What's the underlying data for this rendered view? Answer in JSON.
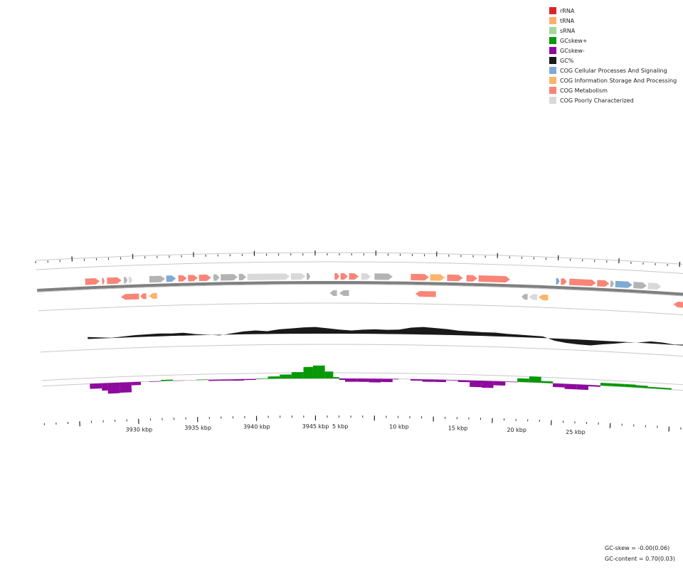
{
  "legend": [
    {
      "label": "rRNA",
      "color": "#d62728",
      "icon": "square-swatch"
    },
    {
      "label": "tRNA",
      "color": "#fdae6b",
      "icon": "square-swatch"
    },
    {
      "label": "sRNA",
      "color": "#a1d99b",
      "icon": "square-swatch"
    },
    {
      "label": "GCskew+",
      "color": "#089808",
      "icon": "square-swatch"
    },
    {
      "label": "GCskew-",
      "color": "#8e0a9e",
      "icon": "square-swatch"
    },
    {
      "label": "GC%",
      "color": "#1a1a1a",
      "icon": "square-swatch"
    },
    {
      "label": "COG Cellular Processes And Signaling",
      "color": "#7eaad4",
      "icon": "square-swatch"
    },
    {
      "label": "COG Information Storage And Processing",
      "color": "#fdb56b",
      "icon": "square-swatch"
    },
    {
      "label": "COG Metabolism",
      "color": "#f98577",
      "icon": "square-swatch"
    },
    {
      "label": "COG Poorly Characterized",
      "color": "#d9d9d9",
      "icon": "square-swatch"
    }
  ],
  "axis_labels": [
    "3930 kbp",
    "3935 kbp",
    "3940 kbp",
    "3945 kbp",
    "5 kbp",
    "10 kbp",
    "15 kbp",
    "20 kbp",
    "25 kbp"
  ],
  "stats": {
    "gc_skew": "GC-skew = -0.00(0.06)",
    "gc_content": "GC-content = 0.70(0.03)"
  },
  "colors": {
    "metabolism": "#f98577",
    "info": "#fdb56b",
    "cellular": "#7eaad4",
    "poorly": "#d9d9d9",
    "unknown": "#b3b3b3",
    "gc": "#1a1a1a",
    "skew_pos": "#089808",
    "skew_neg": "#8e0a9e",
    "backbone": "#7f7f7f",
    "ring": "#c8c8c8"
  },
  "forward_genes": [
    {
      "start": 3926.0,
      "end": 3927.2,
      "cat": "metabolism"
    },
    {
      "start": 3927.4,
      "end": 3927.6,
      "cat": "metabolism"
    },
    {
      "start": 3927.8,
      "end": 3929.0,
      "cat": "metabolism"
    },
    {
      "start": 3929.2,
      "end": 3929.5,
      "cat": "unknown"
    },
    {
      "start": 3929.6,
      "end": 3929.9,
      "cat": "poorly"
    },
    {
      "start": 3931.3,
      "end": 3932.6,
      "cat": "unknown"
    },
    {
      "start": 3932.7,
      "end": 3933.5,
      "cat": "cellular"
    },
    {
      "start": 3933.7,
      "end": 3934.4,
      "cat": "metabolism"
    },
    {
      "start": 3934.5,
      "end": 3935.3,
      "cat": "metabolism"
    },
    {
      "start": 3935.4,
      "end": 3936.4,
      "cat": "metabolism"
    },
    {
      "start": 3936.6,
      "end": 3937.1,
      "cat": "unknown"
    },
    {
      "start": 3937.2,
      "end": 3938.6,
      "cat": "unknown"
    },
    {
      "start": 3938.7,
      "end": 3939.3,
      "cat": "unknown"
    },
    {
      "start": 3939.4,
      "end": 3942.9,
      "cat": "poorly"
    },
    {
      "start": 3943.0,
      "end": 3944.2,
      "cat": "poorly"
    },
    {
      "start": 3944.3,
      "end": 3944.6,
      "cat": "unknown"
    },
    {
      "start": 3946.6,
      "end": 3947.0,
      "cat": "metabolism"
    },
    {
      "start": 3947.1,
      "end": 3947.7,
      "cat": "metabolism"
    },
    {
      "start": 3947.8,
      "end": 3948.6,
      "cat": "metabolism"
    },
    {
      "start": 3948.8,
      "end": 3949.6,
      "cat": "poorly"
    },
    {
      "start": 3949.9,
      "end": 3951.4,
      "cat": "unknown"
    },
    {
      "start": 3952.9,
      "end": 3954.4,
      "cat": "metabolism"
    },
    {
      "start": 3954.5,
      "end": 3955.7,
      "cat": "info"
    },
    {
      "start": 3955.9,
      "end": 3957.2,
      "cat": "metabolism"
    },
    {
      "start": 3957.5,
      "end": 3958.4,
      "cat": "metabolism"
    },
    {
      "start": 3958.5,
      "end": 3961.1,
      "cat": "metabolism"
    },
    {
      "start": 3964.9,
      "end": 3965.2,
      "cat": "cellular"
    },
    {
      "start": 3965.3,
      "end": 3965.8,
      "cat": "metabolism"
    },
    {
      "start": 3966.0,
      "end": 3968.2,
      "cat": "metabolism"
    },
    {
      "start": 3968.3,
      "end": 3969.3,
      "cat": "metabolism"
    },
    {
      "start": 3969.4,
      "end": 3969.7,
      "cat": "unknown"
    },
    {
      "start": 3969.8,
      "end": 3971.2,
      "cat": "cellular"
    },
    {
      "start": 3971.3,
      "end": 3972.4,
      "cat": "unknown"
    },
    {
      "start": 3972.5,
      "end": 3973.6,
      "cat": "poorly"
    },
    {
      "start": 3975.9,
      "end": 3976.8,
      "cat": "metabolism"
    },
    {
      "start": 3976.9,
      "end": 3977.6,
      "cat": "metabolism"
    }
  ],
  "reverse_genes": [
    {
      "start": 3928.9,
      "end": 3930.4,
      "cat": "metabolism"
    },
    {
      "start": 3930.5,
      "end": 3931.0,
      "cat": "metabolism"
    },
    {
      "start": 3931.2,
      "end": 3931.9,
      "cat": "info"
    },
    {
      "start": 3946.2,
      "end": 3946.8,
      "cat": "unknown"
    },
    {
      "start": 3947.0,
      "end": 3947.8,
      "cat": "unknown"
    },
    {
      "start": 3953.3,
      "end": 3955.0,
      "cat": "metabolism"
    },
    {
      "start": 3962.1,
      "end": 3962.6,
      "cat": "unknown"
    },
    {
      "start": 3962.7,
      "end": 3963.4,
      "cat": "poorly"
    },
    {
      "start": 3963.5,
      "end": 3964.3,
      "cat": "info"
    },
    {
      "start": 3974.7,
      "end": 3976.1,
      "cat": "metabolism"
    },
    {
      "start": 3977.3,
      "end": 3977.8,
      "cat": "metabolism"
    },
    {
      "start": 3977.9,
      "end": 3978.4,
      "cat": "poorly"
    },
    {
      "start": 3978.5,
      "end": 3979.5,
      "cat": "metabolism"
    }
  ],
  "gc_content": [
    [
      3926.0,
      0.69
    ],
    [
      3927.0,
      0.68
    ],
    [
      3928.0,
      0.67
    ],
    [
      3929.0,
      0.68
    ],
    [
      3930.0,
      0.69
    ],
    [
      3931.0,
      0.695
    ],
    [
      3932.0,
      0.7
    ],
    [
      3933.0,
      0.695
    ],
    [
      3934.0,
      0.7
    ],
    [
      3935.0,
      0.68
    ],
    [
      3936.0,
      0.67
    ],
    [
      3937.0,
      0.66
    ],
    [
      3938.0,
      0.68
    ],
    [
      3939.0,
      0.7
    ],
    [
      3940.0,
      0.71
    ],
    [
      3941.0,
      0.7
    ],
    [
      3942.0,
      0.72
    ],
    [
      3943.0,
      0.73
    ],
    [
      3944.0,
      0.74
    ],
    [
      3945.0,
      0.745
    ],
    [
      3946.0,
      0.73
    ],
    [
      3947.0,
      0.715
    ],
    [
      3948.0,
      0.705
    ],
    [
      3949.0,
      0.715
    ],
    [
      3950.0,
      0.72
    ],
    [
      3951.0,
      0.715
    ],
    [
      3952.0,
      0.72
    ],
    [
      3953.0,
      0.745
    ],
    [
      3954.0,
      0.755
    ],
    [
      3955.0,
      0.745
    ],
    [
      3956.0,
      0.735
    ],
    [
      3957.0,
      0.72
    ],
    [
      3958.0,
      0.715
    ],
    [
      3959.0,
      0.71
    ],
    [
      3960.0,
      0.71
    ],
    [
      3961.0,
      0.7
    ],
    [
      3962.0,
      0.695
    ],
    [
      3963.0,
      0.69
    ],
    [
      3964.0,
      0.685
    ],
    [
      3965.0,
      0.64
    ],
    [
      3966.0,
      0.62
    ],
    [
      3967.0,
      0.61
    ],
    [
      3968.0,
      0.605
    ],
    [
      3969.0,
      0.625
    ],
    [
      3970.0,
      0.64
    ],
    [
      3971.0,
      0.66
    ],
    [
      3972.0,
      0.67
    ],
    [
      3973.0,
      0.69
    ],
    [
      3974.0,
      0.685
    ],
    [
      3975.0,
      0.67
    ],
    [
      3976.0,
      0.68
    ],
    [
      3977.0,
      0.69
    ],
    [
      3978.0,
      0.685
    ],
    [
      3979.0,
      0.67
    ],
    [
      3979.6,
      0.665
    ]
  ],
  "gc_skew": [
    [
      3926.0,
      -0.05
    ],
    [
      3927.0,
      -0.06
    ],
    [
      3927.5,
      -0.1
    ],
    [
      3928.5,
      -0.13
    ],
    [
      3929.5,
      -0.09
    ],
    [
      3930.3,
      0.02
    ],
    [
      3931.0,
      -0.02
    ],
    [
      3932.0,
      0.01
    ],
    [
      3933.0,
      0.015
    ],
    [
      3934.0,
      -0.02
    ],
    [
      3935.0,
      0.02
    ],
    [
      3936.0,
      -0.01
    ],
    [
      3937.0,
      -0.015
    ],
    [
      3938.0,
      -0.01
    ],
    [
      3939.0,
      -0.02
    ],
    [
      3940.0,
      0.0
    ],
    [
      3941.0,
      0.01
    ],
    [
      3942.0,
      0.04
    ],
    [
      3943.0,
      0.05
    ],
    [
      3944.0,
      0.09
    ],
    [
      3944.8,
      0.16
    ],
    [
      3945.8,
      0.12
    ],
    [
      3946.5,
      0.03
    ],
    [
      3947.0,
      0.0
    ],
    [
      3947.5,
      -0.03
    ],
    [
      3948.5,
      -0.04
    ],
    [
      3949.5,
      -0.03
    ],
    [
      3950.5,
      -0.05
    ],
    [
      3951.5,
      -0.02
    ],
    [
      3952.0,
      0.01
    ],
    [
      3953.0,
      -0.01
    ],
    [
      3954.0,
      -0.02
    ],
    [
      3955.0,
      -0.03
    ],
    [
      3956.0,
      -0.02
    ],
    [
      3957.0,
      0.01
    ],
    [
      3958.0,
      -0.05
    ],
    [
      3959.0,
      -0.09
    ],
    [
      3960.0,
      -0.06
    ],
    [
      3961.0,
      -0.03
    ],
    [
      3962.0,
      0.02
    ],
    [
      3963.0,
      0.06
    ],
    [
      3964.0,
      0.07
    ],
    [
      3965.0,
      -0.03
    ],
    [
      3966.0,
      -0.05
    ],
    [
      3967.0,
      -0.06
    ],
    [
      3968.0,
      -0.05
    ],
    [
      3969.0,
      0.02
    ],
    [
      3970.0,
      0.04
    ],
    [
      3971.0,
      0.02
    ],
    [
      3972.0,
      0.04
    ],
    [
      3973.0,
      0.01
    ],
    [
      3974.0,
      0.02
    ],
    [
      3975.0,
      0.01
    ],
    [
      3976.0,
      -0.01
    ],
    [
      3976.5,
      0.03
    ],
    [
      3977.0,
      0.1
    ],
    [
      3978.0,
      0.08
    ],
    [
      3978.5,
      -0.02
    ],
    [
      3979.6,
      -0.01
    ]
  ]
}
